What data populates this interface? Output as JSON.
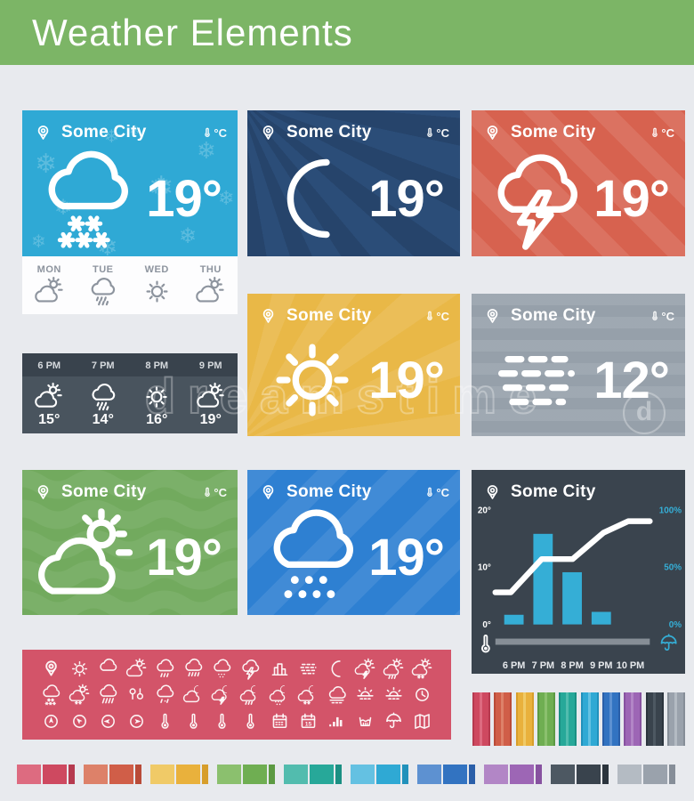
{
  "header": {
    "title": "Weather Elements",
    "bg": "#7cb566"
  },
  "unit_label": "°C",
  "watermark": {
    "text": "dreamstime",
    "logo_letter": "d"
  },
  "cards": {
    "snow": {
      "city": "Some City",
      "temp": "19°",
      "condition": "snow",
      "color": "#2fa9d5"
    },
    "moon": {
      "city": "Some City",
      "temp": "19°",
      "condition": "clear-night",
      "color": "#2b4d78"
    },
    "storm": {
      "city": "Some City",
      "temp": "19°",
      "condition": "thunderstorm",
      "color": "#d7624f"
    },
    "sun": {
      "city": "Some City",
      "temp": "19°",
      "condition": "sunny",
      "color": "#e9b847"
    },
    "fog": {
      "city": "Some City",
      "temp": "12°",
      "condition": "fog",
      "color": "#9aa4ae"
    },
    "partly": {
      "city": "Some City",
      "temp": "19°",
      "condition": "partly-cloudy",
      "color": "#72aa5e"
    },
    "rain": {
      "city": "Some City",
      "temp": "19°",
      "condition": "rain",
      "color": "#2e80d2"
    }
  },
  "daily_forecast": [
    {
      "day": "MON",
      "icon": "sun-cloud"
    },
    {
      "day": "TUE",
      "icon": "shower"
    },
    {
      "day": "WED",
      "icon": "sun"
    },
    {
      "day": "THU",
      "icon": "sun-cloud"
    }
  ],
  "hourly_forecast": [
    {
      "time": "6 PM",
      "icon": "sun-cloud",
      "temp": "15°"
    },
    {
      "time": "7 PM",
      "icon": "shower",
      "temp": "14°"
    },
    {
      "time": "8 PM",
      "icon": "sun",
      "temp": "16°"
    },
    {
      "time": "9 PM",
      "icon": "sun-cloud",
      "temp": "19°"
    }
  ],
  "chart_data": {
    "type": "bar+line",
    "title": "Some City",
    "bg": "#3a444e",
    "categories": [
      "6 PM",
      "7 PM",
      "8 PM",
      "9 PM",
      "10 PM"
    ],
    "bars": {
      "name": "precipitation-bars",
      "color": "#35aed6",
      "axis": "left",
      "values": [
        1.7,
        15.8,
        9.1,
        2.2,
        0
      ]
    },
    "line": {
      "name": "trend-line",
      "color": "#ffffff",
      "axis": "right",
      "points_pct": [
        [
          0,
          28
        ],
        [
          0.1,
          28
        ],
        [
          0.3,
          57
        ],
        [
          0.5,
          57
        ],
        [
          0.7,
          80
        ],
        [
          0.86,
          90
        ],
        [
          1,
          90
        ]
      ]
    },
    "left_axis": {
      "range": [
        0,
        20
      ],
      "ticks": [
        "20°",
        "10°",
        "0°"
      ]
    },
    "right_axis": {
      "range": [
        0,
        100
      ],
      "ticks": [
        "100%",
        "50%",
        "0%"
      ],
      "color": "#35aed6"
    },
    "footer": {
      "left_icon": "thermometer",
      "right_icon": "umbrella",
      "slider_color": "#868e96"
    },
    "grid": false,
    "legend": "none"
  },
  "icon_strip": {
    "calendar_date_label": "15",
    "rows": [
      [
        "pin",
        "sun",
        "cloud",
        "sun-cloud",
        "rain",
        "heavy-rain",
        "drizzle",
        "storm",
        "city",
        "fog",
        "moon",
        "sun-storm",
        "sun-shower",
        "sun-snow"
      ],
      [
        "snow",
        "sun-snow",
        "downpour",
        "wind",
        "sleet",
        "moon-cloud",
        "moon-storm",
        "moon-shower",
        "moon-drizzle",
        "moon-snow",
        "cloud-horizon",
        "sunrise",
        "sunset",
        "clock"
      ],
      [
        "compass-n",
        "compass-nw",
        "compass-w",
        "compass-e",
        "thermometer-high",
        "thermometer-mid",
        "thermometer-low",
        "thermometer",
        "calendar",
        "calendar-date",
        "bar-chart",
        "water-tank",
        "umbrella",
        "map"
      ]
    ]
  },
  "palette": [
    {
      "name": "red",
      "light": "#dd6b80",
      "base": "#ce4960",
      "dark": "#b63a4f"
    },
    {
      "name": "terracotta",
      "light": "#dd8169",
      "base": "#d05e48",
      "dark": "#b94b38"
    },
    {
      "name": "yellow",
      "light": "#f0ca67",
      "base": "#e9b13c",
      "dark": "#d79e2b"
    },
    {
      "name": "green",
      "light": "#8bc06e",
      "base": "#6fae52",
      "dark": "#5c9a42"
    },
    {
      "name": "teal",
      "light": "#52bcae",
      "base": "#27a899",
      "dark": "#1b9083"
    },
    {
      "name": "light-blue",
      "light": "#64c1e2",
      "base": "#2fa9d4",
      "dark": "#2191bb"
    },
    {
      "name": "blue",
      "light": "#5d91d1",
      "base": "#3273c1",
      "dark": "#2a5fa9"
    },
    {
      "name": "purple",
      "light": "#b286c6",
      "base": "#9d66b5",
      "dark": "#8752a0"
    },
    {
      "name": "slate",
      "light": "#4d5862",
      "base": "#39434d",
      "dark": "#2b343d"
    },
    {
      "name": "gray",
      "light": "#b4bbc3",
      "base": "#9aa2ac",
      "dark": "#868e98"
    }
  ]
}
